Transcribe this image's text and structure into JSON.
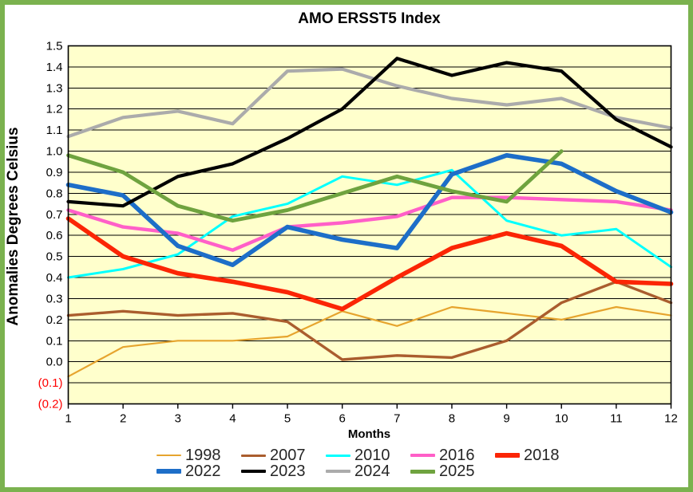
{
  "frame": {
    "border_color": "#7BB24F",
    "background": "#FFFFFF"
  },
  "chart_data": {
    "type": "line",
    "title": "AMO ERSST5 Index",
    "xlabel": "Months",
    "ylabel": "Anomalies Degrees Celsius",
    "plot_bg": "#FFFFCC",
    "grid": "horizontal-only",
    "gridline_color": "#000000",
    "ylim": [
      -0.2,
      1.5
    ],
    "xlim": [
      1,
      12
    ],
    "legend_position": "bottom",
    "negative_label_color": "#FF0000",
    "x_ticks": [
      "1",
      "2",
      "3",
      "4",
      "5",
      "6",
      "7",
      "8",
      "9",
      "10",
      "11",
      "12"
    ],
    "y_ticks": [
      {
        "label": "1.5",
        "value": 1.5,
        "color": "#000000"
      },
      {
        "label": "1.4",
        "value": 1.4,
        "color": "#000000"
      },
      {
        "label": "1.3",
        "value": 1.3,
        "color": "#000000"
      },
      {
        "label": "1.2",
        "value": 1.2,
        "color": "#000000"
      },
      {
        "label": "1.1",
        "value": 1.1,
        "color": "#000000"
      },
      {
        "label": "1.0",
        "value": 1.0,
        "color": "#000000"
      },
      {
        "label": "0.9",
        "value": 0.9,
        "color": "#000000"
      },
      {
        "label": "0.8",
        "value": 0.8,
        "color": "#000000"
      },
      {
        "label": "0.7",
        "value": 0.7,
        "color": "#000000"
      },
      {
        "label": "0.6",
        "value": 0.6,
        "color": "#000000"
      },
      {
        "label": "0.5",
        "value": 0.5,
        "color": "#000000"
      },
      {
        "label": "0.4",
        "value": 0.4,
        "color": "#000000"
      },
      {
        "label": "0.3",
        "value": 0.3,
        "color": "#000000"
      },
      {
        "label": "0.2",
        "value": 0.2,
        "color": "#000000"
      },
      {
        "label": "0.1",
        "value": 0.1,
        "color": "#000000"
      },
      {
        "label": "0.0",
        "value": 0.0,
        "color": "#000000"
      },
      {
        "label": "(0.1)",
        "value": -0.1,
        "color": "#FF0000"
      },
      {
        "label": "(0.2)",
        "value": -0.2,
        "color": "#FF0000"
      }
    ],
    "categories": [
      1,
      2,
      3,
      4,
      5,
      6,
      7,
      8,
      9,
      10,
      11,
      12
    ],
    "series": [
      {
        "name": "1998",
        "color": "#E6A42E",
        "stroke_width": 2.2,
        "values": [
          -0.07,
          0.07,
          0.1,
          0.1,
          0.12,
          0.24,
          0.17,
          0.26,
          0.23,
          0.2,
          0.26,
          0.22
        ]
      },
      {
        "name": "2007",
        "color": "#AA5D2E",
        "stroke_width": 3.4,
        "values": [
          0.22,
          0.24,
          0.22,
          0.23,
          0.19,
          0.01,
          0.03,
          0.02,
          0.1,
          0.28,
          0.38,
          0.28
        ]
      },
      {
        "name": "2010",
        "color": "#00FFFF",
        "stroke_width": 3.0,
        "values": [
          0.4,
          0.44,
          0.51,
          0.69,
          0.75,
          0.88,
          0.84,
          0.91,
          0.67,
          0.6,
          0.63,
          0.45
        ]
      },
      {
        "name": "2016",
        "color": "#FF5FC8",
        "stroke_width": 4.4,
        "values": [
          0.72,
          0.64,
          0.61,
          0.53,
          0.64,
          0.66,
          0.69,
          0.78,
          0.78,
          0.77,
          0.76,
          0.72
        ]
      },
      {
        "name": "2018",
        "color": "#FB2505",
        "stroke_width": 5.6,
        "values": [
          0.68,
          0.5,
          0.42,
          0.38,
          0.33,
          0.25,
          0.4,
          0.54,
          0.61,
          0.55,
          0.38,
          0.37
        ]
      },
      {
        "name": "2022",
        "color": "#1D6EC8",
        "stroke_width": 5.6,
        "values": [
          0.84,
          0.79,
          0.55,
          0.46,
          0.64,
          0.58,
          0.54,
          0.89,
          0.98,
          0.94,
          0.81,
          0.71
        ]
      },
      {
        "name": "2023",
        "color": "#000000",
        "stroke_width": 4.2,
        "values": [
          0.76,
          0.74,
          0.88,
          0.94,
          1.06,
          1.2,
          1.44,
          1.36,
          1.42,
          1.38,
          1.15,
          1.02
        ]
      },
      {
        "name": "2024",
        "color": "#ABABAB",
        "stroke_width": 4.2,
        "values": [
          1.07,
          1.16,
          1.19,
          1.13,
          1.38,
          1.39,
          1.31,
          1.25,
          1.22,
          1.25,
          1.16,
          1.11
        ]
      },
      {
        "name": "2025",
        "color": "#6FA33F",
        "stroke_width": 4.8,
        "values": [
          0.98,
          0.9,
          0.74,
          0.67,
          0.72,
          0.8,
          0.88,
          0.81,
          0.76,
          1.0,
          null,
          null
        ]
      }
    ]
  }
}
